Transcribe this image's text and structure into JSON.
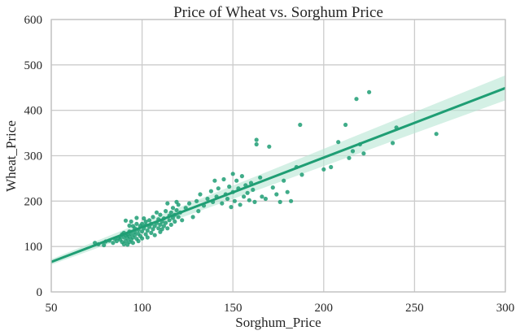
{
  "chart_data": {
    "type": "scatter",
    "title": "Price of Wheat vs. Sorghum Price",
    "xlabel": "Sorghum_Price",
    "ylabel": "Wheat_Price",
    "xlim": [
      50,
      300
    ],
    "ylim": [
      0,
      600
    ],
    "xticks": [
      50,
      100,
      150,
      200,
      250,
      300
    ],
    "yticks": [
      0,
      100,
      200,
      300,
      400,
      500,
      600
    ],
    "grid": true,
    "colors": {
      "points": "#1f9e74",
      "line": "#1f9e74",
      "band": "#b8e6d3",
      "grid": "#cccccc",
      "frame": "#c0c0c0"
    },
    "regression": {
      "x": [
        50,
        300
      ],
      "y": [
        66,
        449
      ],
      "ci_low": [
        60,
        422
      ],
      "ci_high": [
        72,
        477
      ]
    },
    "points": [
      [
        74,
        108
      ],
      [
        76,
        105
      ],
      [
        79,
        103
      ],
      [
        80,
        111
      ],
      [
        82,
        113
      ],
      [
        84,
        108
      ],
      [
        85,
        117
      ],
      [
        86,
        112
      ],
      [
        87,
        119
      ],
      [
        88,
        122
      ],
      [
        88,
        115
      ],
      [
        89,
        127
      ],
      [
        89,
        110
      ],
      [
        90,
        120
      ],
      [
        90,
        130
      ],
      [
        90,
        105
      ],
      [
        91,
        125
      ],
      [
        91,
        112
      ],
      [
        91,
        157
      ],
      [
        92,
        118
      ],
      [
        92,
        127
      ],
      [
        92,
        104
      ],
      [
        93,
        133
      ],
      [
        93,
        122
      ],
      [
        93,
        146
      ],
      [
        93,
        110
      ],
      [
        94,
        115
      ],
      [
        94,
        128
      ],
      [
        94,
        155
      ],
      [
        95,
        120
      ],
      [
        95,
        145
      ],
      [
        95,
        108
      ],
      [
        96,
        125
      ],
      [
        96,
        140
      ],
      [
        96,
        132
      ],
      [
        97,
        117
      ],
      [
        97,
        150
      ],
      [
        97,
        163
      ],
      [
        98,
        128
      ],
      [
        98,
        112
      ],
      [
        98,
        137
      ],
      [
        99,
        145
      ],
      [
        99,
        123
      ],
      [
        100,
        133
      ],
      [
        100,
        150
      ],
      [
        100,
        118
      ],
      [
        101,
        140
      ],
      [
        101,
        162
      ],
      [
        102,
        127
      ],
      [
        102,
        147
      ],
      [
        102,
        155
      ],
      [
        103,
        135
      ],
      [
        103,
        120
      ],
      [
        104,
        143
      ],
      [
        104,
        158
      ],
      [
        105,
        150
      ],
      [
        105,
        130
      ],
      [
        106,
        138
      ],
      [
        106,
        165
      ],
      [
        107,
        145
      ],
      [
        107,
        125
      ],
      [
        108,
        152
      ],
      [
        108,
        175
      ],
      [
        109,
        140
      ],
      [
        109,
        160
      ],
      [
        110,
        132
      ],
      [
        110,
        148
      ],
      [
        110,
        170
      ],
      [
        111,
        155
      ],
      [
        111,
        138
      ],
      [
        112,
        162
      ],
      [
        112,
        145
      ],
      [
        113,
        178
      ],
      [
        113,
        152
      ],
      [
        114,
        140
      ],
      [
        114,
        195
      ],
      [
        115,
        168
      ],
      [
        115,
        158
      ],
      [
        116,
        175
      ],
      [
        116,
        148
      ],
      [
        117,
        163
      ],
      [
        117,
        185
      ],
      [
        118,
        170
      ],
      [
        118,
        155
      ],
      [
        119,
        198
      ],
      [
        119,
        180
      ],
      [
        120,
        165
      ],
      [
        120,
        192
      ],
      [
        121,
        175
      ],
      [
        122,
        158
      ],
      [
        124,
        185
      ],
      [
        126,
        195
      ],
      [
        128,
        165
      ],
      [
        130,
        200
      ],
      [
        131,
        178
      ],
      [
        132,
        215
      ],
      [
        134,
        190
      ],
      [
        136,
        205
      ],
      [
        138,
        222
      ],
      [
        139,
        198
      ],
      [
        140,
        245
      ],
      [
        141,
        210
      ],
      [
        142,
        228
      ],
      [
        144,
        195
      ],
      [
        145,
        248
      ],
      [
        146,
        215
      ],
      [
        147,
        205
      ],
      [
        148,
        232
      ],
      [
        149,
        187
      ],
      [
        150,
        260
      ],
      [
        150,
        220
      ],
      [
        151,
        200
      ],
      [
        152,
        245
      ],
      [
        153,
        228
      ],
      [
        154,
        192
      ],
      [
        155,
        255
      ],
      [
        156,
        210
      ],
      [
        157,
        235
      ],
      [
        158,
        218
      ],
      [
        159,
        202
      ],
      [
        160,
        240
      ],
      [
        161,
        225
      ],
      [
        162,
        198
      ],
      [
        163,
        335
      ],
      [
        163,
        325
      ],
      [
        165,
        252
      ],
      [
        166,
        210
      ],
      [
        168,
        205
      ],
      [
        170,
        320
      ],
      [
        172,
        230
      ],
      [
        174,
        215
      ],
      [
        176,
        198
      ],
      [
        178,
        245
      ],
      [
        180,
        220
      ],
      [
        182,
        200
      ],
      [
        185,
        275
      ],
      [
        187,
        368
      ],
      [
        188,
        258
      ],
      [
        200,
        270
      ],
      [
        204,
        275
      ],
      [
        208,
        330
      ],
      [
        212,
        368
      ],
      [
        214,
        295
      ],
      [
        216,
        310
      ],
      [
        218,
        425
      ],
      [
        220,
        325
      ],
      [
        222,
        305
      ],
      [
        225,
        440
      ],
      [
        238,
        328
      ],
      [
        240,
        362
      ],
      [
        262,
        348
      ]
    ]
  }
}
